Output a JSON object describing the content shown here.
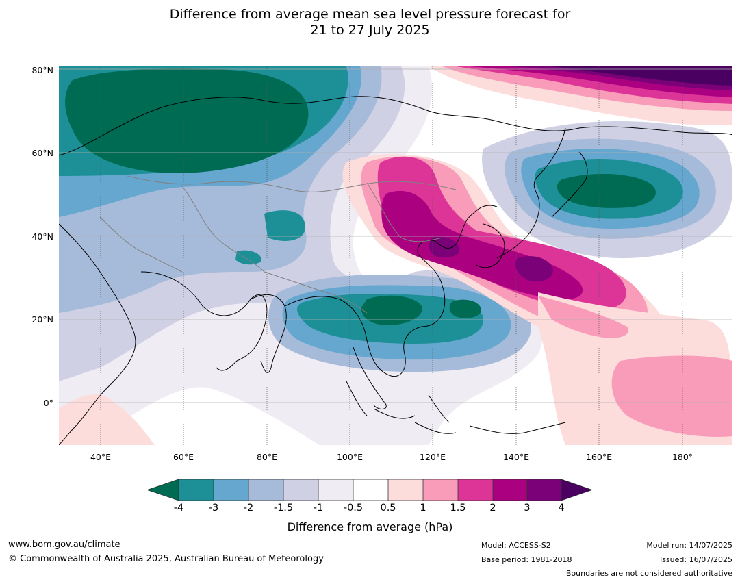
{
  "title": {
    "line1": "Difference from average mean sea level pressure forecast for",
    "line2": "21 to 27 July 2025"
  },
  "axes": {
    "lat_labels": [
      "80°N",
      "60°N",
      "40°N",
      "20°N",
      "0°"
    ],
    "lon_labels": [
      "40°E",
      "60°E",
      "80°E",
      "100°E",
      "120°E",
      "140°E",
      "160°E",
      "180°"
    ]
  },
  "colorbar": {
    "ticks": [
      "-4",
      "-3",
      "-2",
      "-1.5",
      "-1",
      "-0.5",
      "0.5",
      "1",
      "1.5",
      "2",
      "3",
      "4"
    ],
    "colors": {
      "below_-4": "#006b53",
      "-4_-3": "#1c8f97",
      "-3_-2": "#66a7cf",
      "-2_-1.5": "#a6bbd9",
      "-1.5_-1": "#d0d0e5",
      "-1_-0.5": "#f0ecf4",
      "-0.5_0.5": "#ffffff",
      "0.5_1": "#fddcdc",
      "1_1.5": "#f99cb9",
      "1.5_2": "#dc3597",
      "2_3": "#ab0180",
      "3_4": "#7a0177",
      "above_4": "#4a0060"
    },
    "label": "Difference from average (hPa)"
  },
  "footer": {
    "website": "www.bom.gov.au/climate",
    "copyright": "© Commonwealth of Australia 2025, Australian Bureau of Meteorology",
    "model": "Model: ACCESS-S2",
    "base_period": "Base period: 1981-2018",
    "model_run": "Model run: 14/07/2025",
    "issued": "Issued: 16/07/2025",
    "disclaimer": "Boundaries are not considered authoritative"
  }
}
